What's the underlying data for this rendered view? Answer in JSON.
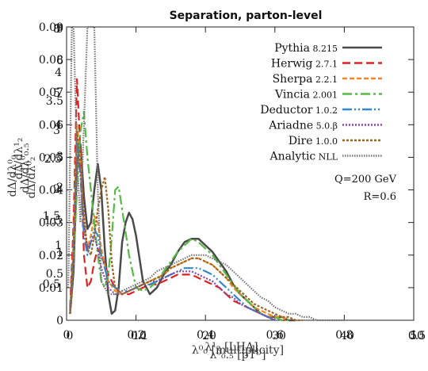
{
  "chart_data": {
    "type": "line",
    "title": "Separation, parton-level",
    "xlabel": "λ⁰₀ [multiplicity]",
    "ylabel": "dΔ/dλ⁰₀",
    "xlim": [
      0,
      1
    ],
    "ylim": [
      0,
      0.09
    ],
    "x_ticks": [
      "0",
      "0.2",
      "0.4",
      "0.6",
      "0.8",
      "1"
    ],
    "y_ticks": [
      "0",
      "0.01",
      "0.02",
      "0.03",
      "0.04",
      "0.05",
      "0.06",
      "0.07",
      "0.08",
      "0.09"
    ],
    "overlapping_labels": {
      "y_left_extra": [
        "0.5",
        "1",
        "1.5",
        "2",
        "2.5",
        "3",
        "3.5",
        "4",
        "0.5",
        "1",
        "1.5",
        "2",
        "3",
        "4",
        "5",
        "6",
        "7",
        "8",
        "9"
      ],
      "x_extra": [
        "0",
        "0.1",
        "10",
        "20",
        "40",
        "50",
        "30",
        "0.5"
      ],
      "y_axis_labels": [
        "dΔ/dλ¹₂",
        "dΔ/dλ⁰₀.₅",
        "dΔ/dλ⁰₂"
      ],
      "x_axis_labels": [
        "λ¹₂ [LHA]",
        "λ⁰₀.₅ [pTᴰ]"
      ]
    },
    "grid": false,
    "legend_position": "top-right",
    "annotations": [
      "Q=200 GeV",
      "R=0.6"
    ],
    "series": [
      {
        "name": "Pythia",
        "version": "8.215",
        "color": "#4a4a4a",
        "dash": "",
        "x": [
          0.01,
          0.02,
          0.03,
          0.04,
          0.05,
          0.06,
          0.07,
          0.08,
          0.09,
          0.1,
          0.11,
          0.12,
          0.13,
          0.14,
          0.15,
          0.16,
          0.17,
          0.18,
          0.19,
          0.2,
          0.22,
          0.24,
          0.26,
          0.28,
          0.3,
          0.32,
          0.34,
          0.36,
          0.38,
          0.4,
          0.42,
          0.44,
          0.46,
          0.48,
          0.5,
          0.52,
          0.54,
          0.56,
          0.58,
          0.6,
          0.62,
          0.64,
          0.66
        ],
        "y": [
          0.002,
          0.015,
          0.048,
          0.054,
          0.038,
          0.028,
          0.03,
          0.04,
          0.048,
          0.04,
          0.022,
          0.008,
          0.002,
          0.003,
          0.01,
          0.024,
          0.03,
          0.033,
          0.031,
          0.026,
          0.012,
          0.008,
          0.01,
          0.014,
          0.017,
          0.021,
          0.024,
          0.025,
          0.025,
          0.023,
          0.021,
          0.018,
          0.015,
          0.011,
          0.008,
          0.006,
          0.004,
          0.002,
          0.001,
          0.001,
          0.001,
          0.0,
          0.0
        ]
      },
      {
        "name": "Herwig",
        "version": "2.7.1",
        "color": "#dd2222",
        "dash": "10,5",
        "x": [
          0.01,
          0.02,
          0.03,
          0.04,
          0.05,
          0.06,
          0.07,
          0.08,
          0.09,
          0.1,
          0.12,
          0.14,
          0.16,
          0.18,
          0.2,
          0.22,
          0.24,
          0.26,
          0.28,
          0.3,
          0.32,
          0.34,
          0.36,
          0.38,
          0.4,
          0.42,
          0.44,
          0.46,
          0.48,
          0.5,
          0.52,
          0.54,
          0.56,
          0.58,
          0.6,
          0.62,
          0.64
        ],
        "y": [
          0.004,
          0.03,
          0.074,
          0.052,
          0.02,
          0.01,
          0.012,
          0.018,
          0.022,
          0.02,
          0.014,
          0.01,
          0.008,
          0.008,
          0.009,
          0.01,
          0.011,
          0.011,
          0.012,
          0.013,
          0.014,
          0.014,
          0.014,
          0.013,
          0.012,
          0.011,
          0.01,
          0.008,
          0.006,
          0.005,
          0.004,
          0.003,
          0.002,
          0.001,
          0.001,
          0.0,
          0.0
        ]
      },
      {
        "name": "Sherpa",
        "version": "2.2.1",
        "color": "#ee8822",
        "dash": "6,3",
        "x": [
          0.01,
          0.02,
          0.03,
          0.04,
          0.05,
          0.06,
          0.07,
          0.08,
          0.09,
          0.1,
          0.12,
          0.14,
          0.16,
          0.18,
          0.2,
          0.22,
          0.24,
          0.26,
          0.28,
          0.3,
          0.32,
          0.34,
          0.36,
          0.38,
          0.4,
          0.42,
          0.44,
          0.46,
          0.48,
          0.5,
          0.52,
          0.54,
          0.56,
          0.58,
          0.6,
          0.62,
          0.64
        ],
        "y": [
          0.003,
          0.024,
          0.06,
          0.05,
          0.028,
          0.022,
          0.026,
          0.032,
          0.03,
          0.022,
          0.012,
          0.009,
          0.008,
          0.009,
          0.01,
          0.011,
          0.012,
          0.013,
          0.014,
          0.016,
          0.017,
          0.018,
          0.019,
          0.019,
          0.018,
          0.017,
          0.015,
          0.013,
          0.01,
          0.008,
          0.006,
          0.004,
          0.003,
          0.002,
          0.001,
          0.001,
          0.0
        ]
      },
      {
        "name": "Vincia",
        "version": "2.001",
        "color": "#55bb44",
        "dash": "12,4,3,4",
        "x": [
          0.01,
          0.02,
          0.03,
          0.04,
          0.05,
          0.06,
          0.07,
          0.08,
          0.09,
          0.1,
          0.11,
          0.12,
          0.13,
          0.14,
          0.15,
          0.16,
          0.18,
          0.2,
          0.22,
          0.24,
          0.26,
          0.28,
          0.3,
          0.32,
          0.34,
          0.36,
          0.38,
          0.4,
          0.42,
          0.44,
          0.46,
          0.48,
          0.5,
          0.52,
          0.54,
          0.56,
          0.58,
          0.6,
          0.62,
          0.64
        ],
        "y": [
          0.002,
          0.018,
          0.04,
          0.058,
          0.064,
          0.05,
          0.04,
          0.03,
          0.02,
          0.012,
          0.01,
          0.014,
          0.025,
          0.04,
          0.041,
          0.034,
          0.02,
          0.01,
          0.009,
          0.01,
          0.012,
          0.015,
          0.018,
          0.021,
          0.023,
          0.025,
          0.024,
          0.022,
          0.02,
          0.017,
          0.014,
          0.011,
          0.008,
          0.006,
          0.004,
          0.002,
          0.001,
          0.001,
          0.0,
          0.0
        ]
      },
      {
        "name": "Deductor",
        "version": "1.0.2",
        "color": "#3388cc",
        "dash": "12,3,2,3,2,3",
        "x": [
          0.01,
          0.02,
          0.03,
          0.04,
          0.05,
          0.06,
          0.07,
          0.08,
          0.09,
          0.1,
          0.12,
          0.14,
          0.16,
          0.18,
          0.2,
          0.22,
          0.24,
          0.26,
          0.28,
          0.3,
          0.32,
          0.34,
          0.36,
          0.38,
          0.4,
          0.42,
          0.44,
          0.46,
          0.48,
          0.5,
          0.52,
          0.54,
          0.56,
          0.58,
          0.6
        ],
        "y": [
          0.003,
          0.022,
          0.056,
          0.044,
          0.026,
          0.02,
          0.024,
          0.028,
          0.026,
          0.02,
          0.012,
          0.01,
          0.009,
          0.009,
          0.01,
          0.011,
          0.011,
          0.012,
          0.013,
          0.014,
          0.015,
          0.016,
          0.016,
          0.016,
          0.015,
          0.014,
          0.012,
          0.01,
          0.008,
          0.006,
          0.004,
          0.003,
          0.002,
          0.001,
          0.0
        ]
      },
      {
        "name": "Ariadne",
        "version": "5.0.β",
        "color": "#8844aa",
        "dash": "2,2",
        "x": [
          0.01,
          0.02,
          0.03,
          0.04,
          0.05,
          0.06,
          0.07,
          0.08,
          0.09,
          0.1,
          0.12,
          0.14,
          0.16,
          0.18,
          0.2,
          0.22,
          0.24,
          0.26,
          0.28,
          0.3,
          0.32,
          0.34,
          0.36,
          0.38,
          0.4,
          0.42,
          0.44,
          0.46,
          0.48,
          0.5,
          0.52,
          0.54,
          0.56,
          0.58,
          0.6
        ],
        "y": [
          0.002,
          0.02,
          0.05,
          0.046,
          0.03,
          0.022,
          0.024,
          0.026,
          0.022,
          0.016,
          0.01,
          0.008,
          0.008,
          0.009,
          0.01,
          0.011,
          0.012,
          0.012,
          0.013,
          0.014,
          0.015,
          0.015,
          0.015,
          0.014,
          0.013,
          0.012,
          0.01,
          0.008,
          0.007,
          0.005,
          0.004,
          0.003,
          0.002,
          0.001,
          0.0
        ]
      },
      {
        "name": "Dire",
        "version": "1.0.0",
        "color": "#996622",
        "dash": "3,2",
        "x": [
          0.01,
          0.02,
          0.03,
          0.04,
          0.05,
          0.06,
          0.07,
          0.08,
          0.09,
          0.1,
          0.11,
          0.12,
          0.13,
          0.14,
          0.16,
          0.18,
          0.2,
          0.22,
          0.24,
          0.26,
          0.28,
          0.3,
          0.32,
          0.34,
          0.36,
          0.38,
          0.4,
          0.42,
          0.44,
          0.46,
          0.48,
          0.5,
          0.52,
          0.54,
          0.56,
          0.58,
          0.6,
          0.62,
          0.64,
          0.66,
          0.68
        ],
        "y": [
          0.002,
          0.02,
          0.058,
          0.048,
          0.032,
          0.022,
          0.02,
          0.026,
          0.034,
          0.04,
          0.044,
          0.034,
          0.018,
          0.01,
          0.008,
          0.009,
          0.01,
          0.011,
          0.012,
          0.013,
          0.014,
          0.016,
          0.017,
          0.018,
          0.019,
          0.019,
          0.018,
          0.017,
          0.015,
          0.013,
          0.011,
          0.009,
          0.007,
          0.005,
          0.004,
          0.003,
          0.002,
          0.001,
          0.001,
          0.0,
          0.0
        ]
      },
      {
        "name": "Analytic",
        "version": "NLL",
        "color": "#777777",
        "dash": "1.5,1.5",
        "x": [
          0.005,
          0.01,
          0.015,
          0.02,
          0.025,
          0.03,
          0.04,
          0.05,
          0.06,
          0.07,
          0.08,
          0.09,
          0.1,
          0.12,
          0.14,
          0.16,
          0.18,
          0.2,
          0.22,
          0.24,
          0.26,
          0.28,
          0.3,
          0.32,
          0.34,
          0.36,
          0.38,
          0.4,
          0.42,
          0.44,
          0.46,
          0.48,
          0.5,
          0.52,
          0.54,
          0.56,
          0.58,
          0.6,
          0.62,
          0.64,
          0.66,
          0.68,
          0.7,
          0.72,
          0.74,
          0.76,
          0.78,
          0.8
        ],
        "y": [
          0.01,
          0.05,
          0.09,
          0.09,
          0.07,
          0.05,
          0.03,
          0.06,
          0.09,
          0.09,
          0.09,
          0.04,
          0.012,
          0.008,
          0.008,
          0.009,
          0.01,
          0.011,
          0.012,
          0.013,
          0.015,
          0.016,
          0.017,
          0.018,
          0.019,
          0.02,
          0.02,
          0.02,
          0.019,
          0.018,
          0.017,
          0.015,
          0.013,
          0.011,
          0.009,
          0.007,
          0.006,
          0.004,
          0.003,
          0.002,
          0.002,
          0.001,
          0.001,
          0.0,
          0.0,
          0.0,
          0.0,
          0.0
        ]
      }
    ]
  }
}
